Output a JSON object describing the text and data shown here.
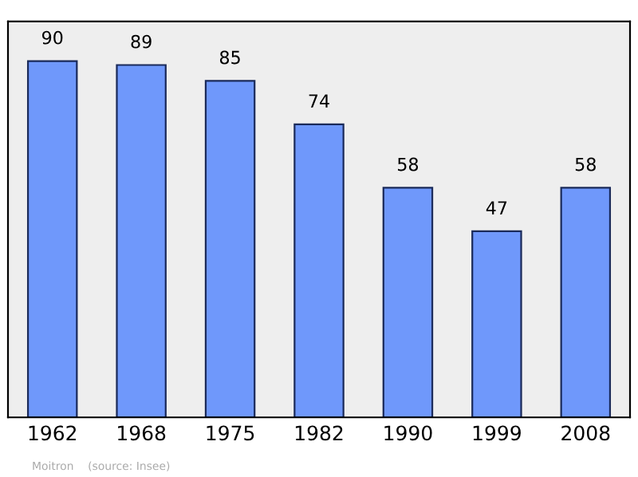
{
  "chart_data": {
    "type": "bar",
    "categories": [
      "1962",
      "1968",
      "1975",
      "1982",
      "1990",
      "1999",
      "2008"
    ],
    "values": [
      90,
      89,
      85,
      74,
      58,
      47,
      58
    ],
    "color": "#6f98fb",
    "data_labels": true,
    "ylim": [
      0,
      100
    ],
    "grid": false,
    "legend": false,
    "annotations": [
      "Moitron    (source: Insee)"
    ]
  }
}
